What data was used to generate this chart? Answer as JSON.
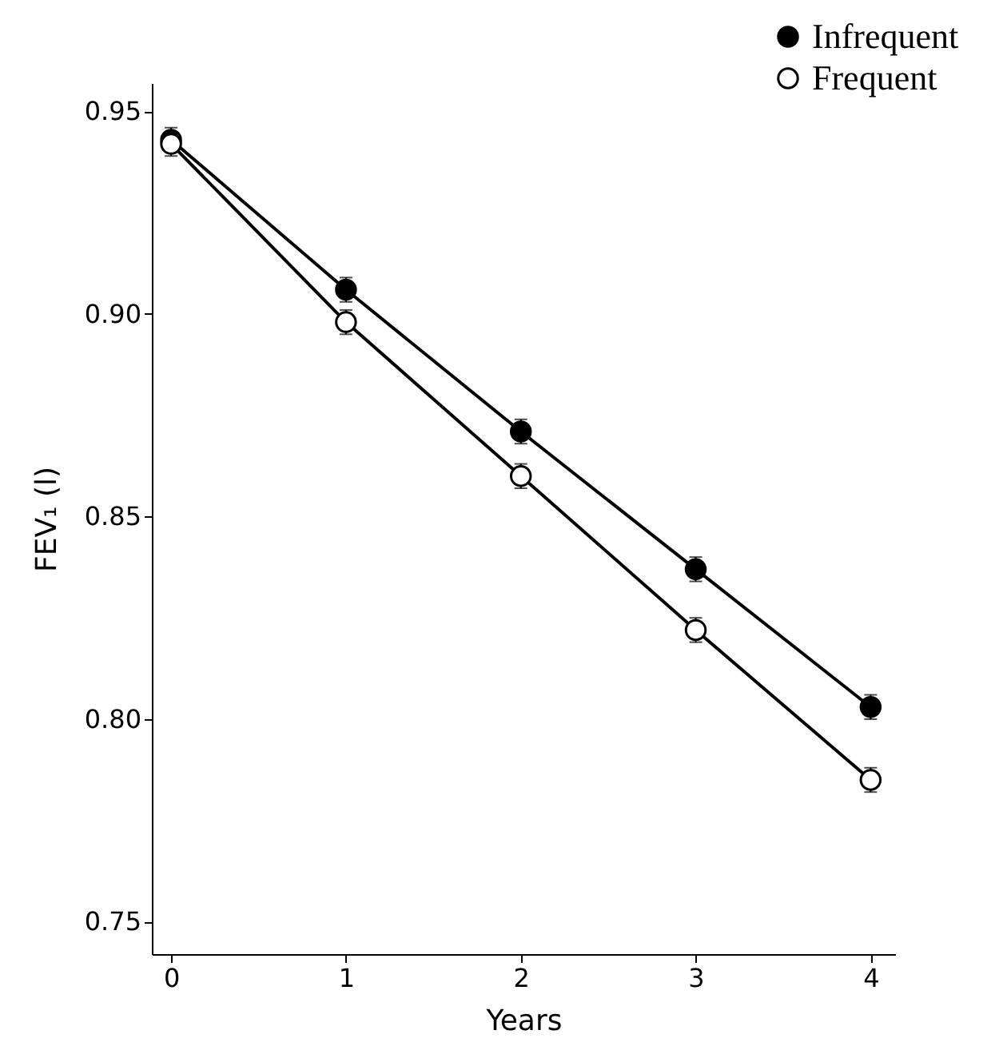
{
  "chart_data": {
    "type": "line",
    "xlabel": "Years",
    "ylabel": "FEV₁ (l)",
    "x": [
      0,
      1,
      2,
      3,
      4
    ],
    "xlim": [
      -0.11,
      4.14
    ],
    "xticks": [
      0,
      1,
      2,
      3,
      4
    ],
    "ylim": [
      0.742,
      0.957
    ],
    "yticks": [
      0.75,
      {
        "value": 0.8,
        "label": "0.80"
      },
      0.85,
      {
        "value": 0.9,
        "label": "0.90"
      },
      0.95
    ],
    "series": [
      {
        "name": "Infrequent",
        "color": "#000000",
        "marker": "circle",
        "values": [
          0.943,
          0.906,
          0.871,
          0.837,
          0.803
        ],
        "errors": [
          0.003,
          0.003,
          0.003,
          0.003,
          0.003
        ]
      },
      {
        "name": "Frequent",
        "color": "#000000",
        "marker": "open circle",
        "values": [
          0.942,
          0.898,
          0.86,
          0.822,
          0.785
        ],
        "errors": [
          0.003,
          0.003,
          0.003,
          0.003,
          0.003
        ]
      }
    ],
    "marker": "circle",
    "line_style": "solid",
    "grid": false,
    "legend": "top right"
  }
}
